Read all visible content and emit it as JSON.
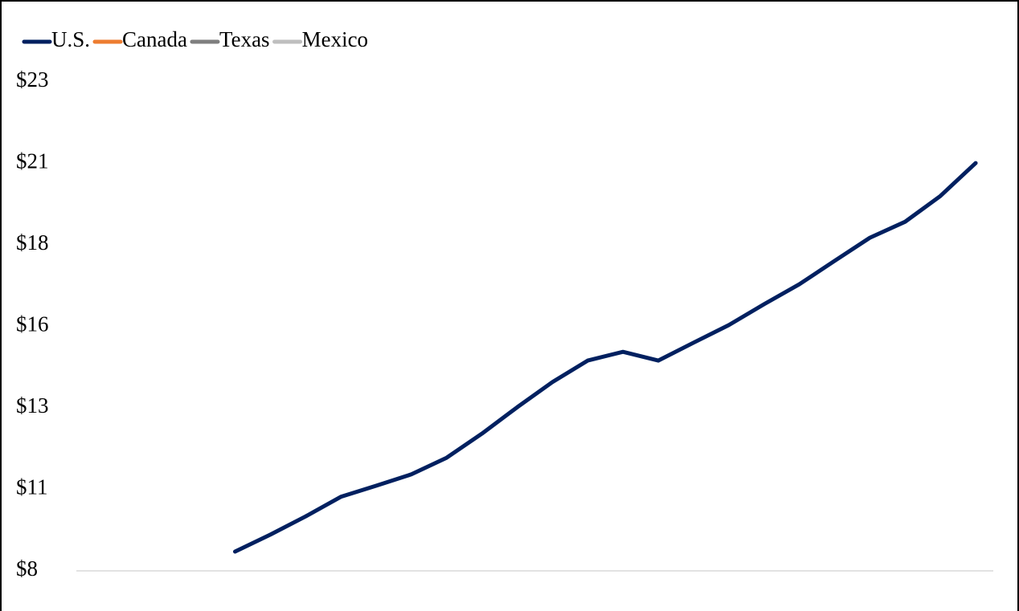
{
  "chart_data": {
    "type": "line",
    "categories": [
      null,
      null,
      null,
      null,
      null,
      null,
      null,
      null,
      null,
      null,
      null,
      null,
      null,
      null,
      null,
      null,
      null,
      null,
      null,
      null,
      null,
      null,
      null,
      null,
      null,
      null
    ],
    "series": [
      {
        "name": "U.S.",
        "color": "#002060",
        "values": [
          null,
          null,
          null,
          null,
          8.59,
          9.11,
          9.67,
          10.27,
          10.61,
          10.96,
          11.47,
          12.21,
          13.02,
          13.79,
          14.45,
          14.72,
          14.45,
          15.0,
          15.54,
          16.18,
          16.79,
          17.51,
          18.22,
          18.71,
          19.5,
          20.51
        ]
      },
      {
        "name": "Canada",
        "color": "#ed7d31",
        "values": [
          null,
          null,
          null,
          null,
          null,
          null,
          null,
          null,
          null,
          null,
          null,
          null,
          null,
          null,
          null,
          null,
          null,
          null,
          null,
          null,
          null,
          null,
          null,
          null,
          null,
          null
        ]
      },
      {
        "name": "Texas",
        "color": "#7f7f7f",
        "values": [
          null,
          null,
          null,
          null,
          null,
          null,
          null,
          null,
          null,
          null,
          null,
          null,
          null,
          null,
          null,
          null,
          null,
          null,
          null,
          null,
          null,
          null,
          null,
          null,
          null,
          null
        ]
      },
      {
        "name": "Mexico",
        "color": "#bfbfbf",
        "values": [
          null,
          null,
          null,
          null,
          null,
          null,
          null,
          null,
          null,
          null,
          null,
          null,
          null,
          null,
          null,
          null,
          null,
          null,
          null,
          null,
          null,
          null,
          null,
          null,
          null,
          null
        ]
      }
    ],
    "ylim": [
      8,
      23
    ],
    "yticks": [
      {
        "value": 8,
        "label": "$8"
      },
      {
        "value": 10.5,
        "label": "$11"
      },
      {
        "value": 13,
        "label": "$13"
      },
      {
        "value": 15.5,
        "label": "$16"
      },
      {
        "value": 18,
        "label": "$18"
      },
      {
        "value": 20.5,
        "label": "$21"
      },
      {
        "value": 23,
        "label": "$23"
      }
    ],
    "grid": false,
    "legend": "top-left"
  }
}
